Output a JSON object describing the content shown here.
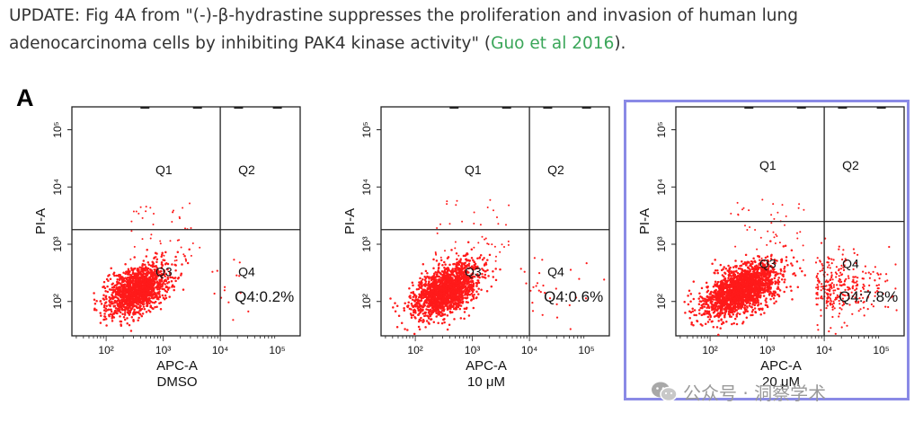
{
  "caption": {
    "prefix": "UPDATE: Fig 4A from \"(-)-β-hydrastine suppresses the proliferation and invasion of human lung adenocarcinoma cells by inhibiting PAK4 kinase activity\" (",
    "link_text": "Guo et al 2016",
    "suffix": ")."
  },
  "figure_letter": "A",
  "chart_data": [
    {
      "type": "scatter",
      "condition": "DMSO",
      "xlabel": "APC-A",
      "ylabel": "PI-A",
      "x_ticks": [
        "10²",
        "10³",
        "10⁴",
        "10⁵"
      ],
      "y_ticks": [
        "10²",
        "10³",
        "10⁴",
        "10⁵"
      ],
      "quadrants": [
        "Q1",
        "Q2",
        "Q3",
        "Q4"
      ],
      "annotation": "Q4:0.2%",
      "q4_percent": 0.2,
      "gate_x": 10000,
      "gate_y": 1800,
      "color": "#ff1a1a"
    },
    {
      "type": "scatter",
      "condition": "10 μM",
      "xlabel": "APC-A",
      "ylabel": "PI-A",
      "x_ticks": [
        "10²",
        "10³",
        "10⁴",
        "10⁵"
      ],
      "y_ticks": [
        "10²",
        "10³",
        "10⁴",
        "10⁵"
      ],
      "quadrants": [
        "Q1",
        "Q2",
        "Q3",
        "Q4"
      ],
      "annotation": "Q4:0.6%",
      "q4_percent": 0.6,
      "gate_x": 10000,
      "gate_y": 1800,
      "color": "#ff1a1a"
    },
    {
      "type": "scatter",
      "condition": "20 μM",
      "xlabel": "APC-A",
      "ylabel": "PI-A",
      "x_ticks": [
        "10²",
        "10³",
        "10⁴",
        "10⁵"
      ],
      "y_ticks": [
        "10²",
        "10³",
        "10⁴",
        "10⁵"
      ],
      "quadrants": [
        "Q1",
        "Q2",
        "Q3",
        "Q4"
      ],
      "annotation": "Q4:7.8%",
      "q4_percent": 7.8,
      "gate_x": 10000,
      "gate_y": 2500,
      "color": "#ff1a1a"
    }
  ],
  "watermark": {
    "text": "公众号 · 洞察学术",
    "icon": "wechat-icon"
  }
}
